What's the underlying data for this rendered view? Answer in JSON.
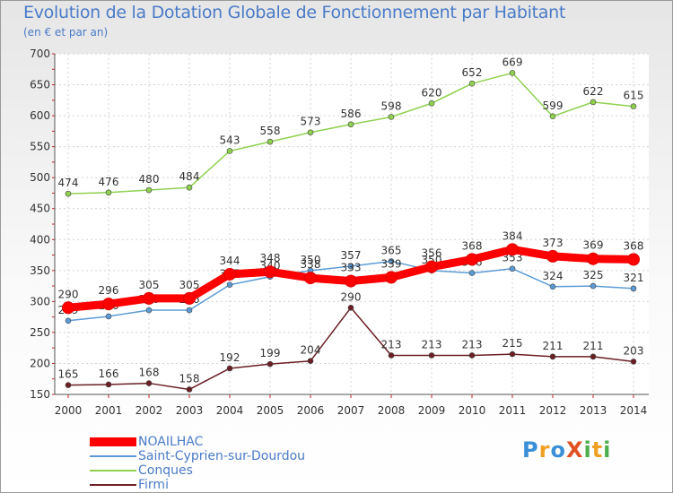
{
  "title": "Evolution de la Dotation Globale de Fonctionnement par Habitant",
  "subtitle": "(en € et par an)",
  "brand": "ProXiti",
  "chart_data": {
    "type": "line",
    "title": "Evolution de la Dotation Globale de Fonctionnement par Habitant",
    "ylabel": "(en € et par an)",
    "xlabel": "",
    "ylim": [
      150,
      700
    ],
    "yticks": [
      "150",
      "200",
      "250",
      "300",
      "350",
      "400",
      "450",
      "500",
      "550",
      "600",
      "650",
      "700"
    ],
    "categories": [
      "2000",
      "2001",
      "2002",
      "2003",
      "2004",
      "2005",
      "2006",
      "2007",
      "2008",
      "2009",
      "2010",
      "2011",
      "2012",
      "2013",
      "2014"
    ],
    "grid": true,
    "legend_position": "bottom-left",
    "series": [
      {
        "name": "Conques",
        "color": "#8fd14f",
        "values": [
          474,
          476,
          480,
          484,
          543,
          558,
          573,
          586,
          598,
          620,
          652,
          669,
          599,
          622,
          615
        ]
      },
      {
        "name": "Saint-Cyprien-sur-Dourdou",
        "color": "#5b9bd5",
        "values": [
          269,
          276,
          286,
          286,
          327,
          340,
          350,
          357,
          365,
          350,
          346,
          353,
          324,
          325,
          321
        ]
      },
      {
        "name": "Firmi",
        "color": "#6b1f24",
        "values": [
          165,
          166,
          168,
          158,
          192,
          199,
          204,
          290,
          213,
          213,
          213,
          215,
          211,
          211,
          203
        ]
      },
      {
        "name": "NOAILHAC",
        "color": "#ff0000",
        "values": [
          290,
          296,
          305,
          305,
          344,
          348,
          338,
          333,
          339,
          356,
          368,
          384,
          373,
          369,
          368
        ]
      }
    ],
    "legend_order": [
      "NOAILHAC",
      "Saint-Cyprien-sur-Dourdou",
      "Conques",
      "Firmi"
    ]
  }
}
